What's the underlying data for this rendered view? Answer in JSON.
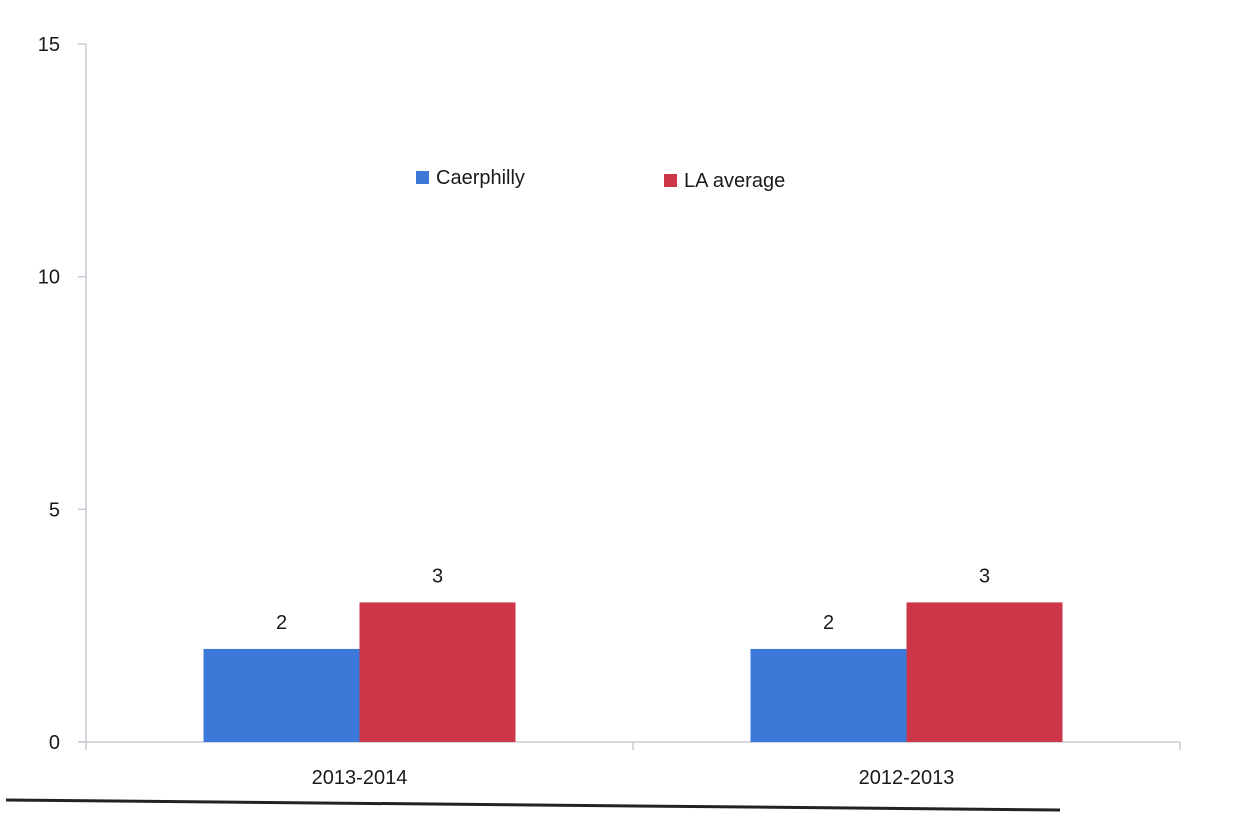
{
  "chart_data": {
    "type": "bar",
    "categories": [
      "2013-2014",
      "2012-2013"
    ],
    "series": [
      {
        "name": "Caerphilly",
        "values": [
          2,
          2
        ],
        "labels": [
          "2",
          "2"
        ],
        "color": "#3b78d8"
      },
      {
        "name": "LA average",
        "values": [
          3,
          3
        ],
        "labels": [
          "3",
          "3"
        ],
        "color": "#cc3648"
      }
    ],
    "ylim": [
      0,
      15
    ],
    "yticks": [
      0,
      5,
      10,
      15
    ],
    "ytick_labels": [
      "0",
      "5",
      "10",
      "15"
    ],
    "grid": false,
    "legend_position": "top-center",
    "title": "",
    "xlabel": "",
    "ylabel": ""
  }
}
